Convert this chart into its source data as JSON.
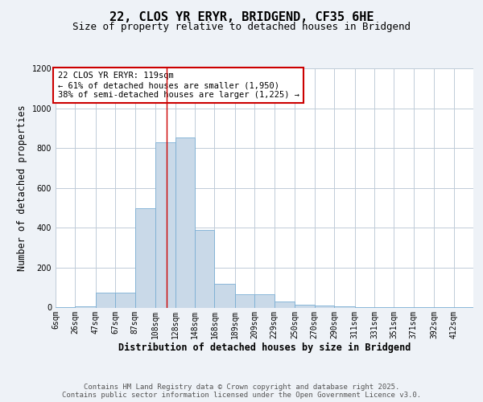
{
  "title": "22, CLOS YR ERYR, BRIDGEND, CF35 6HE",
  "subtitle": "Size of property relative to detached houses in Bridgend",
  "xlabel": "Distribution of detached houses by size in Bridgend",
  "ylabel": "Number of detached properties",
  "footer_line1": "Contains HM Land Registry data © Crown copyright and database right 2025.",
  "footer_line2": "Contains public sector information licensed under the Open Government Licence v3.0.",
  "annotation_line1": "22 CLOS YR ERYR: 119sqm",
  "annotation_line2": "← 61% of detached houses are smaller (1,950)",
  "annotation_line3": "38% of semi-detached houses are larger (1,225) →",
  "bar_color": "#c9d9e8",
  "bar_edge_color": "#7bafd4",
  "vline_color": "#cc0000",
  "vline_x": 119,
  "categories": [
    "6sqm",
    "26sqm",
    "47sqm",
    "67sqm",
    "87sqm",
    "108sqm",
    "128sqm",
    "148sqm",
    "168sqm",
    "189sqm",
    "209sqm",
    "229sqm",
    "250sqm",
    "270sqm",
    "290sqm",
    "311sqm",
    "331sqm",
    "351sqm",
    "371sqm",
    "392sqm",
    "412sqm"
  ],
  "bin_edges": [
    6,
    26,
    47,
    67,
    87,
    108,
    128,
    148,
    168,
    189,
    209,
    229,
    250,
    270,
    290,
    311,
    331,
    351,
    371,
    392,
    412
  ],
  "values": [
    2,
    8,
    75,
    75,
    500,
    830,
    855,
    390,
    120,
    65,
    65,
    30,
    15,
    10,
    7,
    4,
    3,
    2,
    2,
    2,
    1
  ],
  "ylim": [
    0,
    1200
  ],
  "yticks": [
    0,
    200,
    400,
    600,
    800,
    1000,
    1200
  ],
  "background_color": "#eef2f7",
  "plot_background": "#ffffff",
  "grid_color": "#c0ccd8",
  "title_fontsize": 11,
  "subtitle_fontsize": 9,
  "axis_label_fontsize": 8.5,
  "tick_fontsize": 7,
  "annotation_fontsize": 7.5,
  "footer_fontsize": 6.5
}
